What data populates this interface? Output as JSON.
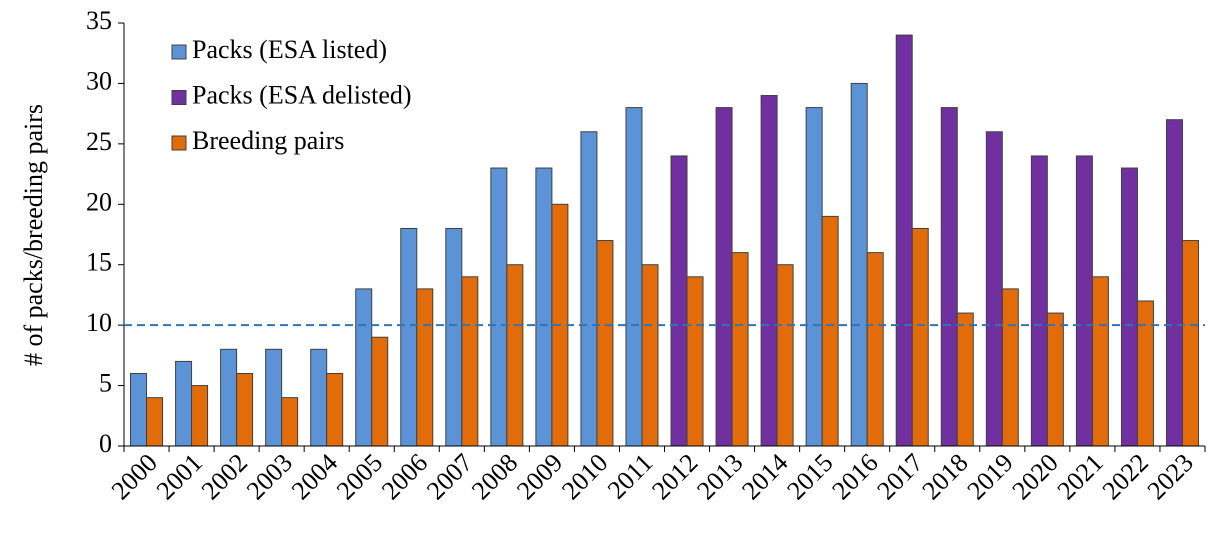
{
  "chart_data": {
    "type": "bar",
    "y_label": "# of packs/breeding pairs",
    "categories": [
      "2000",
      "2001",
      "2002",
      "2003",
      "2004",
      "2005",
      "2006",
      "2007",
      "2008",
      "2009",
      "2010",
      "2011",
      "2012",
      "2013",
      "2014",
      "2015",
      "2016",
      "2017",
      "2018",
      "2019",
      "2020",
      "2021",
      "2022",
      "2023"
    ],
    "series": [
      {
        "name": "Packs (ESA listed)",
        "color": "#5b93d6",
        "slot": "left",
        "values": [
          6,
          7,
          8,
          8,
          8,
          13,
          18,
          18,
          23,
          23,
          26,
          28,
          null,
          null,
          null,
          28,
          30,
          null,
          null,
          null,
          null,
          null,
          null,
          null
        ]
      },
      {
        "name": "Packs (ESA delisted)",
        "color": "#7030a0",
        "slot": "left",
        "values": [
          null,
          null,
          null,
          null,
          null,
          null,
          null,
          null,
          null,
          null,
          null,
          null,
          24,
          28,
          29,
          null,
          null,
          34,
          28,
          26,
          24,
          24,
          23,
          27
        ]
      },
      {
        "name": "Breeding pairs",
        "color": "#e36c0a",
        "slot": "right",
        "values": [
          4,
          5,
          6,
          4,
          6,
          9,
          13,
          14,
          15,
          20,
          17,
          15,
          14,
          16,
          15,
          19,
          16,
          18,
          11,
          13,
          11,
          14,
          12,
          17
        ]
      }
    ],
    "reference_line": 10,
    "reference_color": "#2e75b6",
    "ylim": [
      0,
      35
    ],
    "yticks": [
      0,
      5,
      10,
      15,
      20,
      25,
      30,
      35
    ],
    "grid": false,
    "legend": "top-left"
  }
}
